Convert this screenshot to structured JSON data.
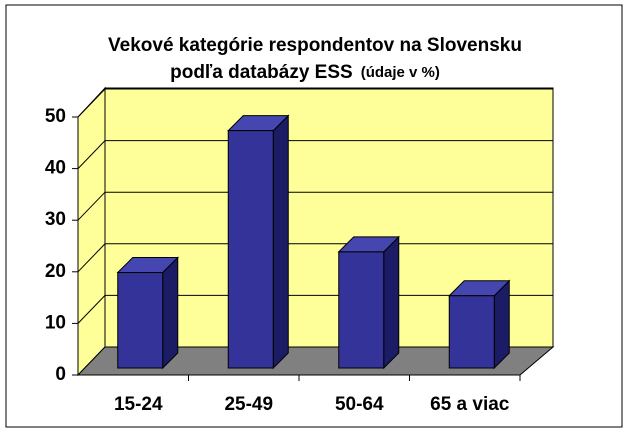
{
  "chart_data": {
    "type": "bar",
    "title": [
      "Vekové kategórie  respondentov na Slovensku",
      "podľa databázy ESS"
    ],
    "subtitle": "(údaje v %)",
    "categories": [
      "15-24",
      "25-49",
      "50-64",
      "65 a viac"
    ],
    "values": [
      18.5,
      46,
      22.5,
      14
    ],
    "color": "#333399",
    "ylim": [
      0,
      50
    ],
    "yticks": [
      0,
      10,
      20,
      30,
      40,
      50
    ],
    "grid": true
  }
}
